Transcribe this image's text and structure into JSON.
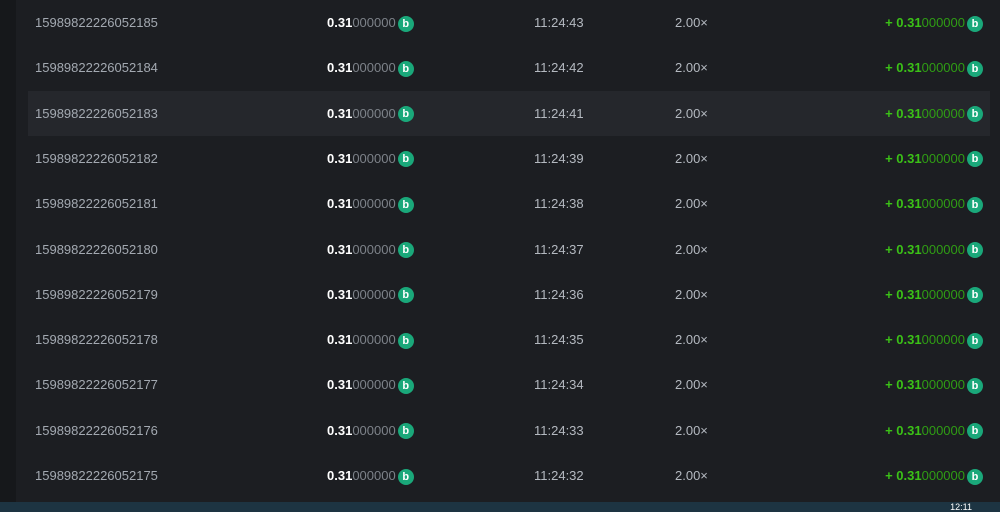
{
  "rows": [
    {
      "id": "15989822226052185",
      "amount_main": "0.31",
      "amount_rest": "000000",
      "time": "11:24:43",
      "multiplier": "2.00×",
      "payout_main": "+ 0.31",
      "payout_rest": "000000"
    },
    {
      "id": "15989822226052184",
      "amount_main": "0.31",
      "amount_rest": "000000",
      "time": "11:24:42",
      "multiplier": "2.00×",
      "payout_main": "+ 0.31",
      "payout_rest": "000000"
    },
    {
      "id": "15989822226052183",
      "amount_main": "0.31",
      "amount_rest": "000000",
      "time": "11:24:41",
      "multiplier": "2.00×",
      "payout_main": "+ 0.31",
      "payout_rest": "000000"
    },
    {
      "id": "15989822226052182",
      "amount_main": "0.31",
      "amount_rest": "000000",
      "time": "11:24:39",
      "multiplier": "2.00×",
      "payout_main": "+ 0.31",
      "payout_rest": "000000"
    },
    {
      "id": "15989822226052181",
      "amount_main": "0.31",
      "amount_rest": "000000",
      "time": "11:24:38",
      "multiplier": "2.00×",
      "payout_main": "+ 0.31",
      "payout_rest": "000000"
    },
    {
      "id": "15989822226052180",
      "amount_main": "0.31",
      "amount_rest": "000000",
      "time": "11:24:37",
      "multiplier": "2.00×",
      "payout_main": "+ 0.31",
      "payout_rest": "000000"
    },
    {
      "id": "15989822226052179",
      "amount_main": "0.31",
      "amount_rest": "000000",
      "time": "11:24:36",
      "multiplier": "2.00×",
      "payout_main": "+ 0.31",
      "payout_rest": "000000"
    },
    {
      "id": "15989822226052178",
      "amount_main": "0.31",
      "amount_rest": "000000",
      "time": "11:24:35",
      "multiplier": "2.00×",
      "payout_main": "+ 0.31",
      "payout_rest": "000000"
    },
    {
      "id": "15989822226052177",
      "amount_main": "0.31",
      "amount_rest": "000000",
      "time": "11:24:34",
      "multiplier": "2.00×",
      "payout_main": "+ 0.31",
      "payout_rest": "000000"
    },
    {
      "id": "15989822226052176",
      "amount_main": "0.31",
      "amount_rest": "000000",
      "time": "11:24:33",
      "multiplier": "2.00×",
      "payout_main": "+ 0.31",
      "payout_rest": "000000"
    },
    {
      "id": "15989822226052175",
      "amount_main": "0.31",
      "amount_rest": "000000",
      "time": "11:24:32",
      "multiplier": "2.00×",
      "payout_main": "+ 0.31",
      "payout_rest": "000000"
    }
  ],
  "coin_icon": "coin-b-icon",
  "coin_glyph": "b",
  "highlighted_row": 2,
  "colors": {
    "win": "#3bc117",
    "coin": "#1aa87a"
  },
  "taskbar": {
    "clock": "12:11"
  }
}
